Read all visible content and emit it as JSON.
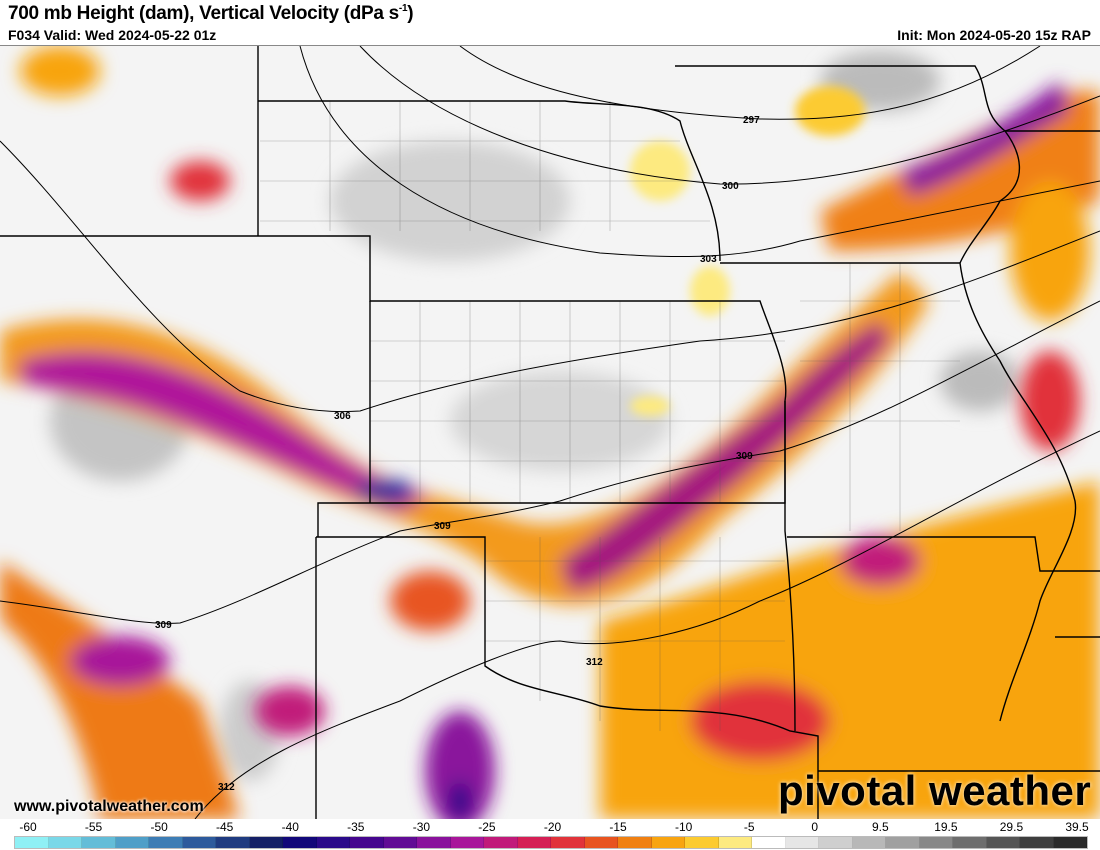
{
  "header": {
    "title": "700 mb Height (dam), Vertical Velocity (dPa s",
    "title_sup": "-1",
    "title_end": ")",
    "valid": "F034 Valid: Wed 2024-05-22 01z",
    "init": "Init: Mon 2024-05-20 15z RAP"
  },
  "watermark": {
    "site": "www.pivotalweather.com",
    "logo": "pivotal weather"
  },
  "contours": {
    "labels": [
      "297",
      "300",
      "303",
      "306",
      "309",
      "309",
      "309",
      "312",
      "312"
    ]
  },
  "colorbar": {
    "labels": [
      "-60",
      "-55",
      "-50",
      "-45",
      "-40",
      "-35",
      "-30",
      "-25",
      "-20",
      "-15",
      "-10",
      "-5",
      "0",
      "9.5",
      "19.5",
      "29.5",
      "39.5"
    ],
    "colors": [
      "#8ff0f5",
      "#7ad8e8",
      "#63bdd8",
      "#4f9fc8",
      "#3d7db5",
      "#2d5a9c",
      "#1f3b80",
      "#141f66",
      "#12087a",
      "#2a0a8a",
      "#45068e",
      "#610c95",
      "#8a129c",
      "#a8169a",
      "#c11a7a",
      "#d51f55",
      "#e1333a",
      "#e85420",
      "#f08012",
      "#f8a410",
      "#fccb30",
      "#fdea80",
      "#ffffff",
      "#e6e6e6",
      "#cfcfcf",
      "#b8b8b8",
      "#a0a0a0",
      "#888888",
      "#6e6e6e",
      "#555555",
      "#3e3e3e",
      "#2a2a2a"
    ]
  }
}
